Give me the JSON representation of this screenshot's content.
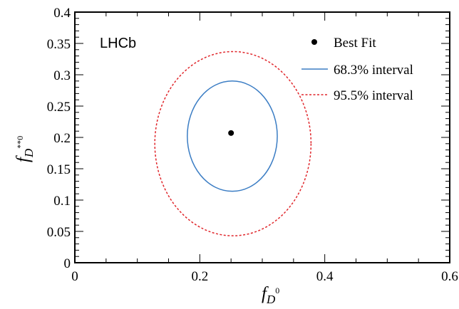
{
  "chart_data": {
    "type": "scatter",
    "annotation": "LHCb",
    "xlabel": {
      "base": "f",
      "sub": "D",
      "sup": "0"
    },
    "ylabel": {
      "base": "f",
      "sub": "D",
      "sup": "**0"
    },
    "xlim": [
      0,
      0.6
    ],
    "ylim": [
      0,
      0.4
    ],
    "x_ticks": [
      0,
      0.2,
      0.4,
      0.6
    ],
    "x_tick_labels": [
      "0",
      "0.2",
      "0.4",
      "0.6"
    ],
    "y_ticks": [
      0,
      0.05,
      0.1,
      0.15,
      0.2,
      0.25,
      0.3,
      0.35,
      0.4
    ],
    "y_tick_labels": [
      "0",
      "0.05",
      "0.1",
      "0.15",
      "0.2",
      "0.25",
      "0.3",
      "0.35",
      "0.4"
    ],
    "legend_position": "top-right",
    "grid": false,
    "best_fit": {
      "name": "Best Fit",
      "x": 0.25,
      "y": 0.207,
      "color": "#000000"
    },
    "contours": [
      {
        "name": "68.3% interval",
        "color": "#3b7dc4",
        "style": "solid",
        "cx": 0.252,
        "cy": 0.202,
        "rx": 0.072,
        "ry": 0.088
      },
      {
        "name": "95.5% interval",
        "color": "#e0262b",
        "style": "dashed",
        "cx": 0.253,
        "cy": 0.19,
        "rx": 0.125,
        "ry": 0.147
      }
    ]
  }
}
